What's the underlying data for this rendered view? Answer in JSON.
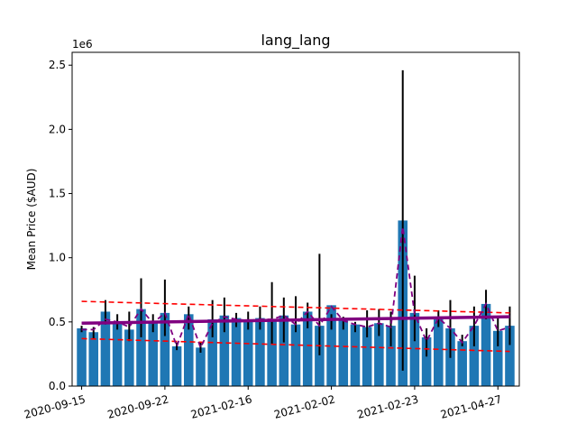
{
  "chart_data": {
    "type": "bar",
    "title": "lang_lang",
    "ylabel": "Mean Price ($AUD)",
    "xlabel": "",
    "y_multiplier_label": "1e6",
    "ylim": [
      0,
      2600000
    ],
    "yticks": [
      0,
      500000,
      1000000,
      1500000,
      2000000,
      2500000
    ],
    "ytick_labels": [
      "0.0",
      "0.5",
      "1.0",
      "1.5",
      "2.0",
      "2.5"
    ],
    "xtick_labels": [
      {
        "index": 0,
        "label": "2020-09-15"
      },
      {
        "index": 7,
        "label": "2020-09-22"
      },
      {
        "index": 14,
        "label": "2021-02-16"
      },
      {
        "index": 21,
        "label": "2021-02-02"
      },
      {
        "index": 28,
        "label": "2021-02-23"
      },
      {
        "index": 35,
        "label": "2021-04-27"
      }
    ],
    "bar_color": "#1f77b4",
    "values": [
      450000,
      420000,
      580000,
      500000,
      440000,
      600000,
      490000,
      570000,
      310000,
      560000,
      300000,
      520000,
      550000,
      530000,
      510000,
      530000,
      520000,
      550000,
      480000,
      580000,
      470000,
      630000,
      510000,
      480000,
      460000,
      490000,
      470000,
      1290000,
      570000,
      380000,
      520000,
      450000,
      350000,
      470000,
      640000,
      430000,
      470000
    ],
    "errors": [
      [
        420000,
        470000
      ],
      [
        370000,
        460000
      ],
      [
        480000,
        670000
      ],
      [
        440000,
        560000
      ],
      [
        350000,
        580000
      ],
      [
        380000,
        840000
      ],
      [
        420000,
        560000
      ],
      [
        390000,
        830000
      ],
      [
        280000,
        340000
      ],
      [
        440000,
        620000
      ],
      [
        260000,
        340000
      ],
      [
        380000,
        670000
      ],
      [
        420000,
        690000
      ],
      [
        460000,
        570000
      ],
      [
        440000,
        580000
      ],
      [
        440000,
        620000
      ],
      [
        330000,
        810000
      ],
      [
        340000,
        690000
      ],
      [
        420000,
        700000
      ],
      [
        450000,
        650000
      ],
      [
        240000,
        1030000
      ],
      [
        440000,
        560000
      ],
      [
        440000,
        540000
      ],
      [
        420000,
        500000
      ],
      [
        380000,
        590000
      ],
      [
        390000,
        600000
      ],
      [
        310000,
        580000
      ],
      [
        120000,
        2460000
      ],
      [
        350000,
        860000
      ],
      [
        230000,
        450000
      ],
      [
        460000,
        590000
      ],
      [
        220000,
        670000
      ],
      [
        310000,
        400000
      ],
      [
        310000,
        620000
      ],
      [
        520000,
        750000
      ],
      [
        310000,
        540000
      ],
      [
        320000,
        620000
      ]
    ],
    "rolling_mean": [
      440000,
      440000,
      520000,
      500000,
      460000,
      600000,
      490000,
      570000,
      310000,
      560000,
      300000,
      490000,
      540000,
      520000,
      510000,
      520000,
      520000,
      550000,
      480000,
      580000,
      470000,
      620000,
      510000,
      480000,
      460000,
      490000,
      460000,
      1240000,
      560000,
      350000,
      530000,
      450000,
      340000,
      470000,
      640000,
      430000,
      460000
    ],
    "trend_line": {
      "start": 490000,
      "end": 540000,
      "color": "#800080"
    },
    "upper_band": {
      "start": 660000,
      "end": 570000,
      "color": "#ff0000"
    },
    "lower_band": {
      "start": 370000,
      "end": 270000,
      "color": "#ff0000"
    },
    "rolling_color": "#800080",
    "grid": false
  }
}
